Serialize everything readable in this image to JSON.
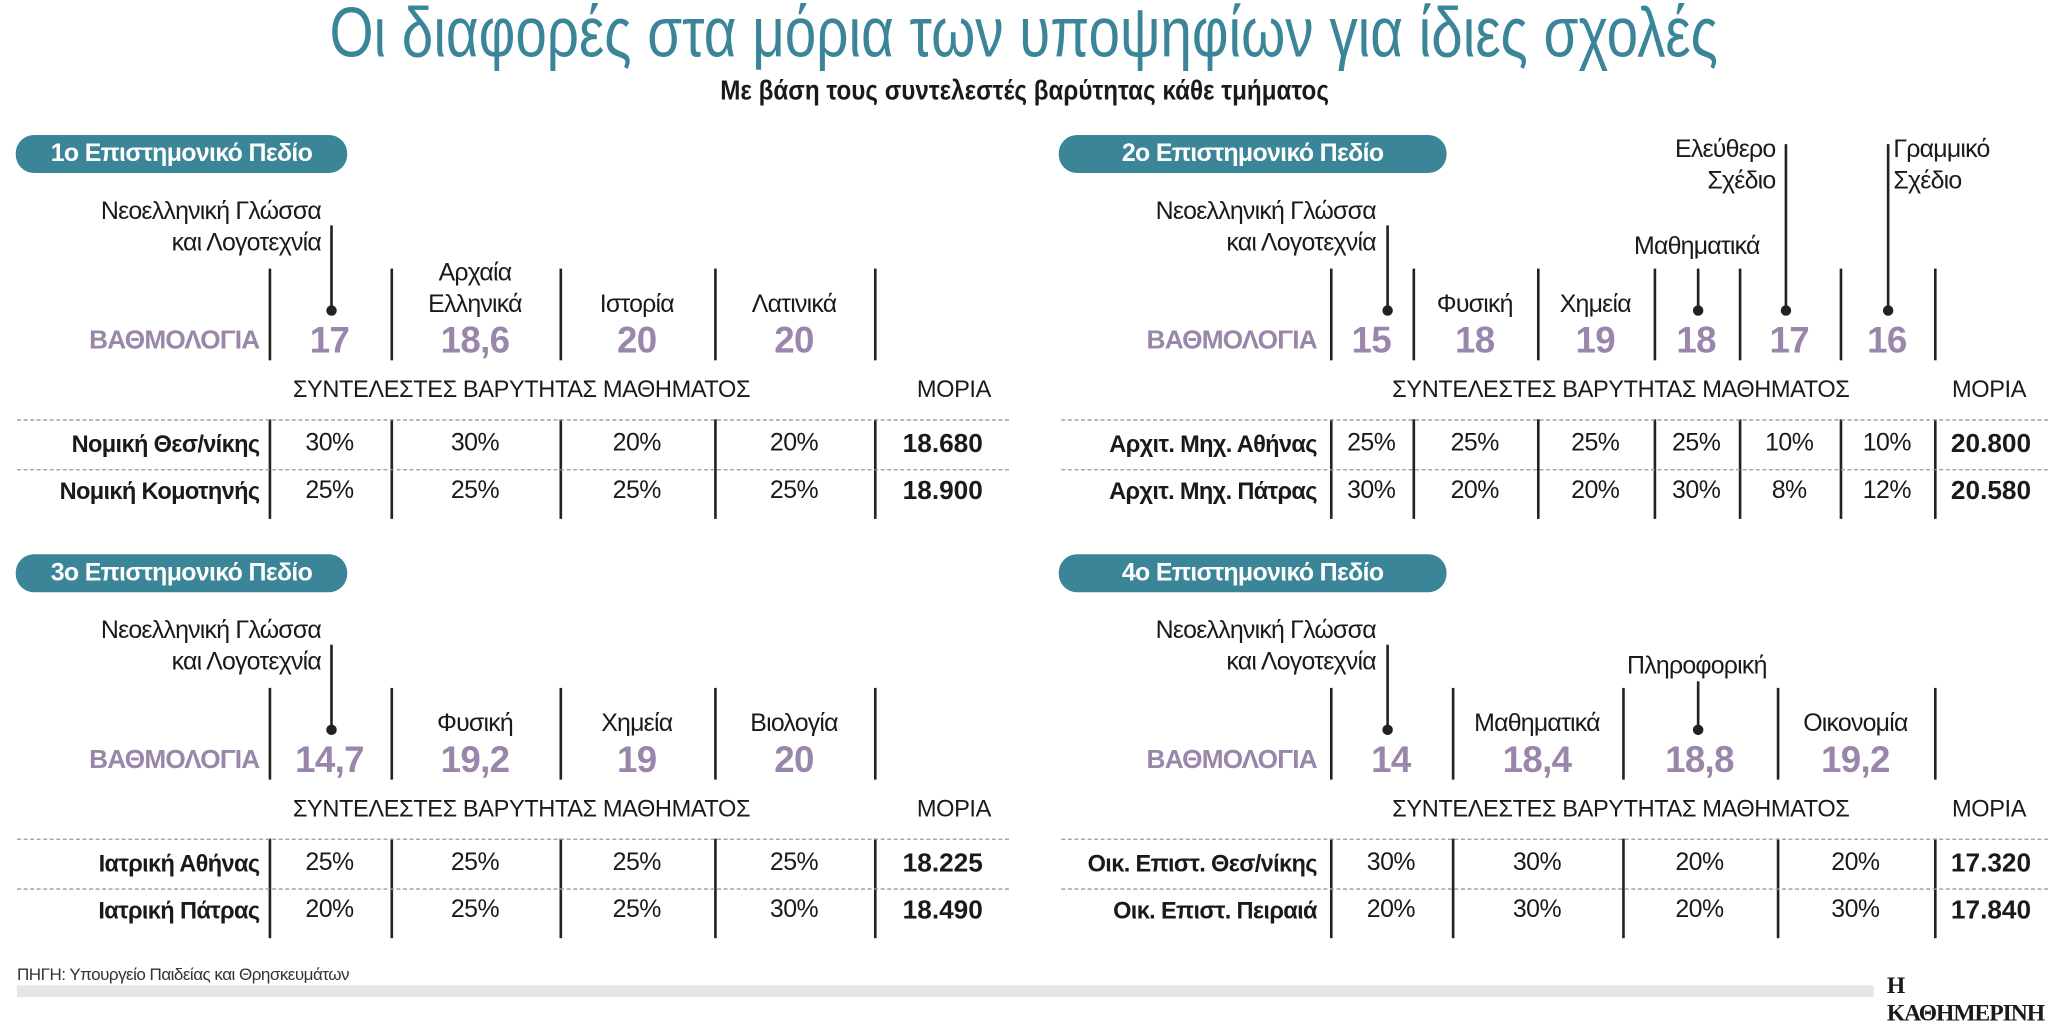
{
  "header": {
    "title": "Οι διαφορές στα μόρια των υποψηφίων για ίδιες σχολές",
    "subtitle": "Με βάση τους συντελεστές βαρύτητας κάθε τμήματος"
  },
  "colors": {
    "accent": "#3a8597",
    "score": "#9a86aa"
  },
  "panels": [
    {
      "title": "1ο Επιστημονικό Πεδίο",
      "score_label": "ΒΑΘΜΟΛΟΓΙΑ",
      "weights_header": "ΣΥΝΤΕΛΕΣΤΕΣ ΒΑΡΥΤΗΤΑΣ ΜΑΘΗΜΑΤΟΣ",
      "moria_header": "ΜΟΡΙΑ",
      "subjects": [
        {
          "label": [
            "Νεοελληνική Γλώσσα",
            "και Λογοτεχνία"
          ],
          "score": "17"
        },
        {
          "label": [
            "Αρχαία",
            "Ελληνικά"
          ],
          "score": "18,6"
        },
        {
          "label": [
            "Ιστορία"
          ],
          "score": "20"
        },
        {
          "label": [
            "Λατινικά"
          ],
          "score": "20"
        }
      ],
      "rows": [
        {
          "school": "Νομική Θεσ/νίκης",
          "weights": [
            "30%",
            "30%",
            "20%",
            "20%"
          ],
          "moria": "18.680"
        },
        {
          "school": "Νομική Κομοτηνής",
          "weights": [
            "25%",
            "25%",
            "25%",
            "25%"
          ],
          "moria": "18.900"
        }
      ]
    },
    {
      "title": "2ο Επιστημονικό Πεδίο",
      "score_label": "ΒΑΘΜΟΛΟΓΙΑ",
      "weights_header": "ΣΥΝΤΕΛΕΣΤΕΣ ΒΑΡΥΤΗΤΑΣ ΜΑΘΗΜΑΤΟΣ",
      "moria_header": "ΜΟΡΙΑ",
      "subjects": [
        {
          "label": [
            "Νεοελληνική Γλώσσα",
            "και Λογοτεχνία"
          ],
          "score": "15"
        },
        {
          "label": [
            "Φυσική"
          ],
          "score": "18"
        },
        {
          "label": [
            "Χημεία"
          ],
          "score": "19"
        },
        {
          "label": [
            "Μαθηματικά"
          ],
          "score": "18"
        },
        {
          "label": [
            "Ελεύθερο",
            "Σχέδιο"
          ],
          "score": "17"
        },
        {
          "label": [
            "Γραμμικό",
            "Σχέδιο"
          ],
          "score": "16"
        }
      ],
      "rows": [
        {
          "school": "Αρχιτ. Μηχ. Αθήνας",
          "weights": [
            "25%",
            "25%",
            "25%",
            "25%",
            "10%",
            "10%"
          ],
          "moria": "20.800"
        },
        {
          "school": "Αρχιτ. Μηχ. Πάτρας",
          "weights": [
            "30%",
            "20%",
            "20%",
            "30%",
            "8%",
            "12%"
          ],
          "moria": "20.580"
        }
      ]
    },
    {
      "title": "3ο Επιστημονικό Πεδίο",
      "score_label": "ΒΑΘΜΟΛΟΓΙΑ",
      "weights_header": "ΣΥΝΤΕΛΕΣΤΕΣ ΒΑΡΥΤΗΤΑΣ ΜΑΘΗΜΑΤΟΣ",
      "moria_header": "ΜΟΡΙΑ",
      "subjects": [
        {
          "label": [
            "Νεοελληνική Γλώσσα",
            "και Λογοτεχνία"
          ],
          "score": "14,7"
        },
        {
          "label": [
            "Φυσική"
          ],
          "score": "19,2"
        },
        {
          "label": [
            "Χημεία"
          ],
          "score": "19"
        },
        {
          "label": [
            "Βιολογία"
          ],
          "score": "20"
        }
      ],
      "rows": [
        {
          "school": "Ιατρική Αθήνας",
          "weights": [
            "25%",
            "25%",
            "25%",
            "25%"
          ],
          "moria": "18.225"
        },
        {
          "school": "Ιατρική Πάτρας",
          "weights": [
            "20%",
            "25%",
            "25%",
            "30%"
          ],
          "moria": "18.490"
        }
      ]
    },
    {
      "title": "4ο Επιστημονικό Πεδίο",
      "score_label": "ΒΑΘΜΟΛΟΓΙΑ",
      "weights_header": "ΣΥΝΤΕΛΕΣΤΕΣ ΒΑΡΥΤΗΤΑΣ ΜΑΘΗΜΑΤΟΣ",
      "moria_header": "ΜΟΡΙΑ",
      "subjects": [
        {
          "label": [
            "Νεοελληνική Γλώσσα",
            "και Λογοτεχνία"
          ],
          "score": "14"
        },
        {
          "label": [
            "Μαθηματικά"
          ],
          "score": "18,4"
        },
        {
          "label": [
            "Πληροφορική"
          ],
          "score": "18,8"
        },
        {
          "label": [
            "Οικονομία"
          ],
          "score": "19,2"
        }
      ],
      "rows": [
        {
          "school": "Οικ. Επιστ. Θεσ/νίκης",
          "weights": [
            "30%",
            "30%",
            "20%",
            "20%"
          ],
          "moria": "17.320"
        },
        {
          "school": "Οικ. Επιστ. Πειραιά",
          "weights": [
            "20%",
            "30%",
            "20%",
            "30%"
          ],
          "moria": "17.840"
        }
      ]
    }
  ],
  "footer": {
    "source": "ΠΗΓΗ: Υπουργείο Παιδείας και Θρησκευμάτων",
    "brand": "Η ΚΑΘΗΜΕΡΙΝΗ"
  }
}
